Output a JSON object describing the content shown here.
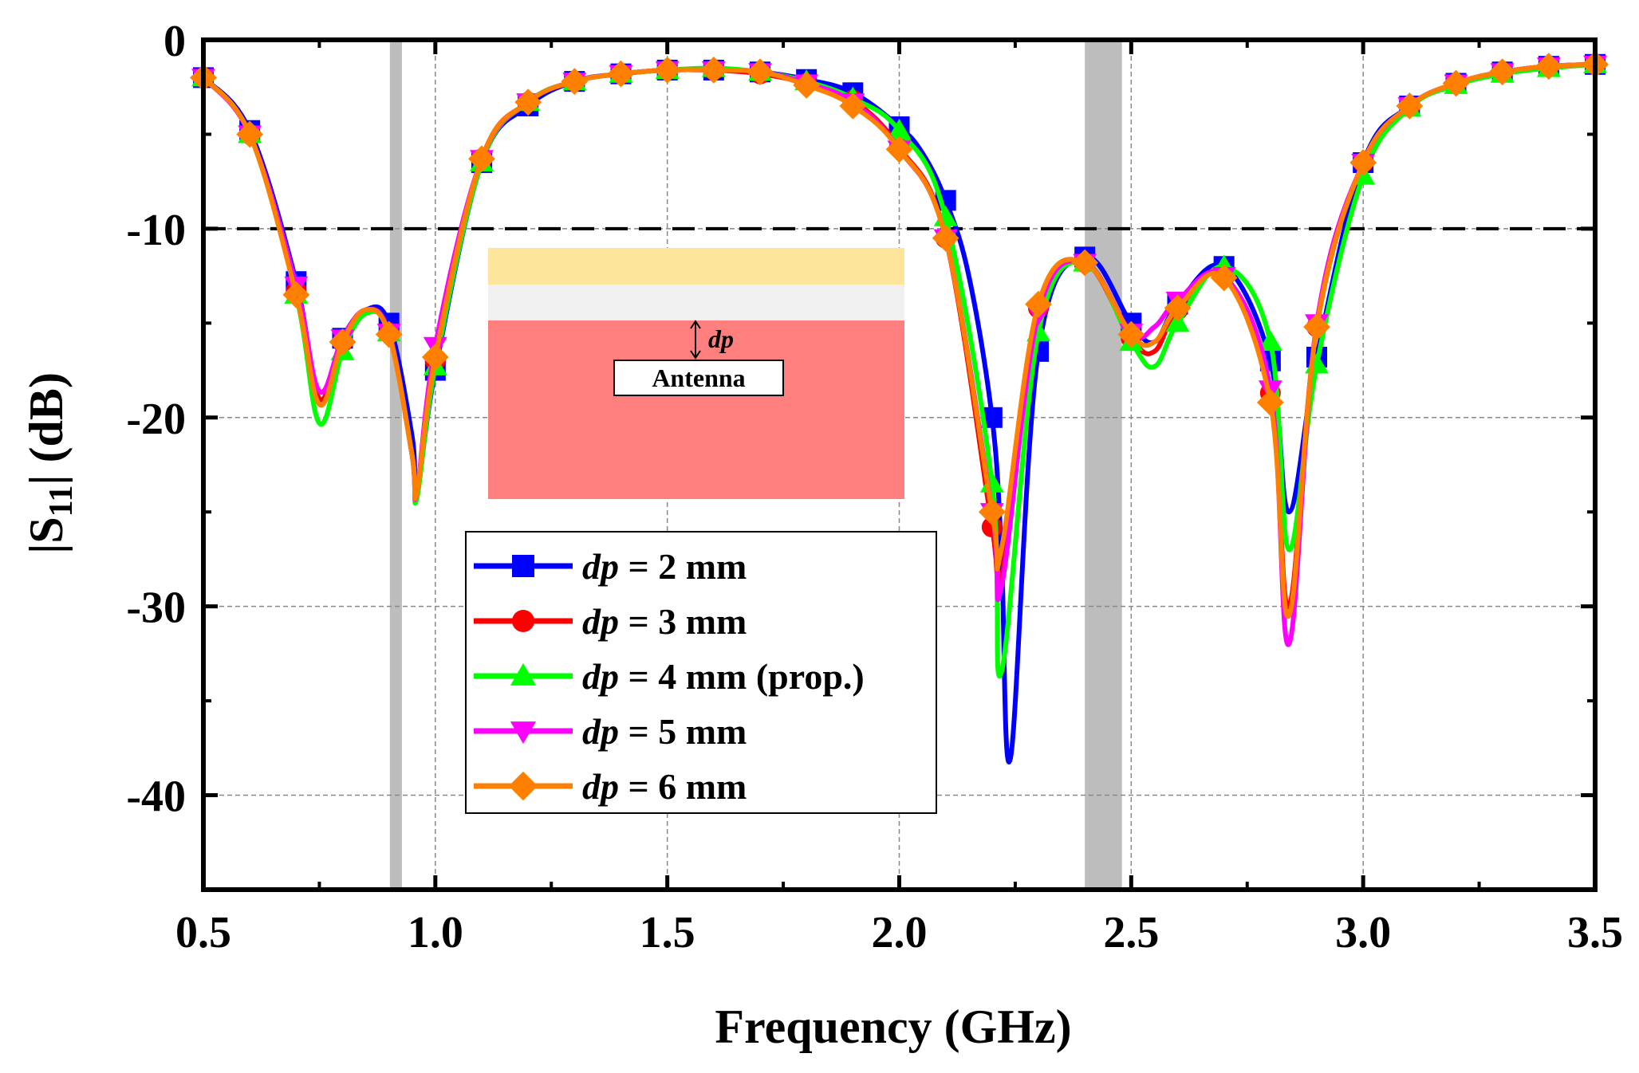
{
  "chart_data": {
    "type": "line",
    "title": "",
    "xlabel": "Frequency (GHz)",
    "ylabel_main": "|S",
    "ylabel_sub": "11",
    "ylabel_tail": "| (dB)",
    "xlim": [
      0.5,
      3.5
    ],
    "ylim": [
      -45,
      0
    ],
    "xticks": [
      0.5,
      1.0,
      1.5,
      2.0,
      2.5,
      3.0,
      3.5
    ],
    "xtick_labels": [
      "0.5",
      "1.0",
      "1.5",
      "2.0",
      "2.5",
      "3.0",
      "3.5"
    ],
    "yticks": [
      0,
      -10,
      -20,
      -30,
      -40
    ],
    "ytick_labels": [
      "0",
      "-10",
      "-20",
      "-30",
      "-40"
    ],
    "grid": true,
    "reference_line": {
      "y": -10,
      "style": "dashed"
    },
    "shaded_bands": [
      {
        "x0": 0.902,
        "x1": 0.928
      },
      {
        "x0": 2.4,
        "x1": 2.48
      }
    ],
    "legend": {
      "placement": "lower-center",
      "entries": [
        {
          "var": "dp",
          "text": " = 2 mm"
        },
        {
          "var": "dp",
          "text": " = 3 mm"
        },
        {
          "var": "dp",
          "text": " = 4 mm (prop.)"
        },
        {
          "var": "dp",
          "text": " = 5 mm"
        },
        {
          "var": "dp",
          "text": " = 6 mm"
        }
      ]
    },
    "inset": {
      "label": "Antenna",
      "dimension_label": "dp",
      "layer_colors": [
        "#fde69b",
        "#f0f0f0",
        "#ff7f7f"
      ]
    },
    "series": [
      {
        "name": "dp = 2 mm",
        "color": "#0000ff",
        "marker": "square",
        "x": [
          0.5,
          0.6,
          0.7,
          0.75,
          0.8,
          0.85,
          0.9,
          0.95,
          0.96,
          1.0,
          1.1,
          1.2,
          1.3,
          1.4,
          1.5,
          1.6,
          1.7,
          1.8,
          1.9,
          2.0,
          2.05,
          2.1,
          2.15,
          2.2,
          2.22,
          2.24,
          2.3,
          2.4,
          2.5,
          2.55,
          2.6,
          2.7,
          2.8,
          2.84,
          2.9,
          3.0,
          3.1,
          3.2,
          3.3,
          3.4,
          3.5
        ],
        "y": [
          -2,
          -4.8,
          -12.8,
          -19,
          -15.8,
          -14.3,
          -15,
          -21,
          -24,
          -17.5,
          -6.5,
          -3.5,
          -2.2,
          -1.8,
          -1.6,
          -1.6,
          -1.7,
          -2.1,
          -2.8,
          -4.6,
          -6,
          -8.5,
          -12.5,
          -20,
          -27,
          -38,
          -16.5,
          -11.5,
          -15,
          -16,
          -14,
          -12,
          -17,
          -25,
          -16.8,
          -6.5,
          -3.5,
          -2.3,
          -1.7,
          -1.4,
          -1.3
        ]
      },
      {
        "name": "dp = 3 mm",
        "color": "#ff0000",
        "marker": "circle",
        "x": [
          0.5,
          0.6,
          0.7,
          0.75,
          0.8,
          0.85,
          0.9,
          0.95,
          0.96,
          1.0,
          1.1,
          1.2,
          1.3,
          1.4,
          1.5,
          1.6,
          1.7,
          1.8,
          1.9,
          2.0,
          2.1,
          2.2,
          2.22,
          2.3,
          2.4,
          2.5,
          2.55,
          2.6,
          2.7,
          2.8,
          2.84,
          2.9,
          3.0,
          3.1,
          3.2,
          3.3,
          3.4,
          3.5
        ],
        "y": [
          -2,
          -5,
          -13.3,
          -19,
          -16,
          -14.3,
          -15.5,
          -22,
          -24,
          -17,
          -6.3,
          -3.3,
          -2.2,
          -1.8,
          -1.6,
          -1.6,
          -1.8,
          -2.3,
          -3.2,
          -5.7,
          -10.5,
          -25.8,
          -28.5,
          -14.2,
          -11.8,
          -15.8,
          -16.5,
          -14.3,
          -12.5,
          -18.7,
          -30,
          -15.2,
          -6.5,
          -3.5,
          -2.3,
          -1.7,
          -1.4,
          -1.3
        ]
      },
      {
        "name": "dp = 4 mm (prop.)",
        "color": "#00ff00",
        "marker": "triangle-up",
        "x": [
          0.5,
          0.6,
          0.7,
          0.75,
          0.8,
          0.85,
          0.9,
          0.95,
          0.96,
          1.0,
          1.1,
          1.2,
          1.3,
          1.4,
          1.5,
          1.6,
          1.7,
          1.8,
          1.9,
          2.0,
          2.1,
          2.2,
          2.22,
          2.3,
          2.4,
          2.5,
          2.55,
          2.6,
          2.7,
          2.8,
          2.84,
          2.9,
          3.0,
          3.1,
          3.2,
          3.3,
          3.4,
          3.5
        ],
        "y": [
          -2,
          -5,
          -13.5,
          -20.3,
          -16.5,
          -14.5,
          -15.5,
          -22,
          -24.3,
          -17.3,
          -6.5,
          -3.3,
          -2.2,
          -1.8,
          -1.6,
          -1.5,
          -1.7,
          -2.2,
          -3.1,
          -4.8,
          -9.4,
          -23.5,
          -33.5,
          -15.5,
          -11.8,
          -16,
          -17.3,
          -15,
          -12,
          -16,
          -27,
          -17.2,
          -7.2,
          -3.6,
          -2.4,
          -1.8,
          -1.5,
          -1.3
        ]
      },
      {
        "name": "dp = 5 mm",
        "color": "#ff00ff",
        "marker": "triangle-down",
        "x": [
          0.5,
          0.6,
          0.7,
          0.75,
          0.8,
          0.85,
          0.9,
          0.95,
          0.96,
          1.0,
          1.1,
          1.2,
          1.3,
          1.4,
          1.5,
          1.6,
          1.7,
          1.8,
          1.9,
          2.0,
          2.1,
          2.2,
          2.22,
          2.3,
          2.4,
          2.5,
          2.55,
          2.6,
          2.7,
          2.8,
          2.84,
          2.9,
          3.0,
          3.1,
          3.2,
          3.3,
          3.4,
          3.5
        ],
        "y": [
          -2,
          -5,
          -13,
          -18.6,
          -15.8,
          -14.3,
          -15.5,
          -22,
          -24,
          -16.2,
          -6.3,
          -3.3,
          -2.2,
          -1.8,
          -1.6,
          -1.6,
          -1.7,
          -2.3,
          -3.3,
          -5.8,
          -10.5,
          -25,
          -29,
          -14.5,
          -11.8,
          -15.5,
          -15.2,
          -13.8,
          -12.5,
          -18.5,
          -32,
          -15,
          -6.5,
          -3.5,
          -2.3,
          -1.7,
          -1.4,
          -1.3
        ]
      },
      {
        "name": "dp = 6 mm",
        "color": "#ff8000",
        "marker": "diamond",
        "x": [
          0.5,
          0.6,
          0.7,
          0.75,
          0.8,
          0.85,
          0.9,
          0.95,
          0.96,
          1.0,
          1.1,
          1.2,
          1.3,
          1.4,
          1.5,
          1.6,
          1.7,
          1.8,
          1.9,
          2.0,
          2.1,
          2.2,
          2.22,
          2.3,
          2.4,
          2.5,
          2.55,
          2.6,
          2.7,
          2.8,
          2.84,
          2.9,
          3.0,
          3.1,
          3.2,
          3.3,
          3.4,
          3.5
        ],
        "y": [
          -2,
          -5,
          -13.5,
          -19.3,
          -16,
          -14.3,
          -15.6,
          -22,
          -24,
          -16.8,
          -6.3,
          -3.3,
          -2.2,
          -1.8,
          -1.6,
          -1.6,
          -1.7,
          -2.4,
          -3.5,
          -5.8,
          -10.5,
          -25,
          -27,
          -14,
          -11.8,
          -15.6,
          -16,
          -14.2,
          -12.6,
          -19.2,
          -30.5,
          -15.2,
          -6.5,
          -3.5,
          -2.3,
          -1.7,
          -1.4,
          -1.3
        ]
      }
    ]
  }
}
